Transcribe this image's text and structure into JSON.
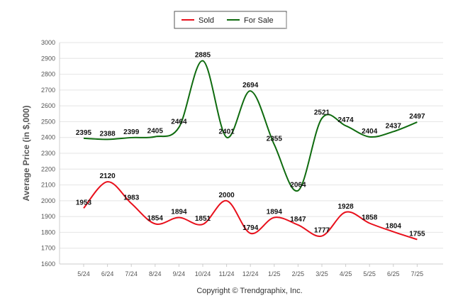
{
  "chart_data": {
    "type": "line",
    "categories": [
      "5/24",
      "6/24",
      "7/24",
      "8/24",
      "9/24",
      "10/24",
      "11/24",
      "12/24",
      "1/25",
      "2/25",
      "3/25",
      "4/25",
      "5/25",
      "6/25",
      "7/25"
    ],
    "series": [
      {
        "name": "Sold",
        "color": "#e8101c",
        "values": [
          1953,
          2120,
          1983,
          1854,
          1894,
          1851,
          2000,
          1794,
          1894,
          1847,
          1777,
          1928,
          1858,
          1804,
          1755
        ]
      },
      {
        "name": "For Sale",
        "color": "#0f6b0f",
        "values": [
          2395,
          2388,
          2399,
          2405,
          2464,
          2885,
          2401,
          2694,
          2355,
          2064,
          2521,
          2474,
          2404,
          2437,
          2497
        ]
      }
    ],
    "ylabel": "Average Price (in $,000)",
    "xlabel": "",
    "ylim": [
      1600,
      3000
    ],
    "yticks": [
      1600,
      1700,
      1800,
      1900,
      2000,
      2100,
      2200,
      2300,
      2400,
      2500,
      2600,
      2700,
      2800,
      2900,
      3000
    ],
    "grid": true,
    "legend_position": "top-center",
    "footer": "Copyright © Trendgraphix, Inc."
  }
}
